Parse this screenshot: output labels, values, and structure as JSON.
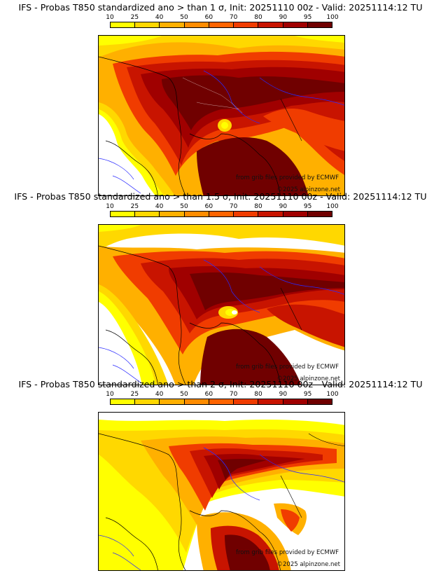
{
  "colorbar": {
    "ticks": [
      "10",
      "25",
      "40",
      "50",
      "60",
      "70",
      "80",
      "90",
      "95",
      "100"
    ],
    "colors": [
      "#ffff00",
      "#ffd800",
      "#ffb000",
      "#ff8c00",
      "#ff6400",
      "#f03c00",
      "#c81400",
      "#a00000",
      "#700000"
    ]
  },
  "credits": {
    "source": "from grib files provided by ECMWF",
    "copyright": "©2025 alpinzone.net"
  },
  "panels": [
    {
      "title": "IFS - Probas T850  standardized ano > than 1 σ, Init: 20251110 00z - Valid: 20251114:12 TU"
    },
    {
      "title": "IFS - Probas T850  standardized ano > than 1.5 σ, Init: 20251110 00z - Valid: 20251114:12 TU"
    },
    {
      "title": "IFS - Probas T850  standardized ano > than 2 σ, Init: 20251110 00z - Valid: 20251114:12 TU"
    }
  ]
}
